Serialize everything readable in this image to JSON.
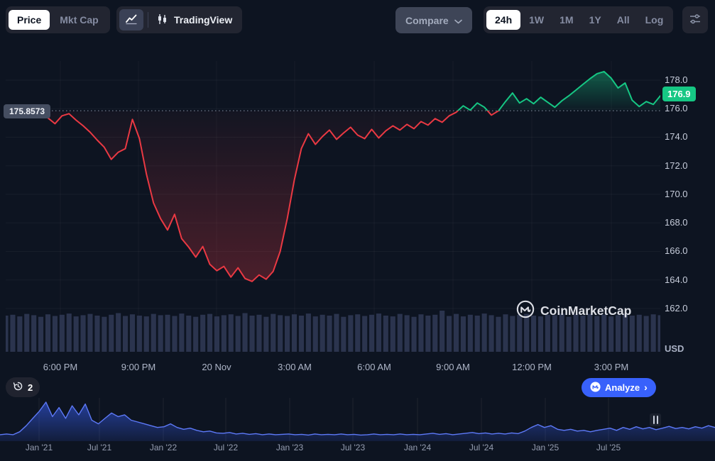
{
  "toolbar": {
    "price_label": "Price",
    "mktcap_label": "Mkt Cap",
    "tradingview_label": "TradingView",
    "compare_label": "Compare",
    "ranges": [
      "24h",
      "1W",
      "1M",
      "1Y",
      "All",
      "Log"
    ],
    "active_range": "24h"
  },
  "chart": {
    "open_price_label": "175.8573",
    "current_price_label": "176.9",
    "y_ticks": [
      "178.0",
      "176.0",
      "174.0",
      "172.0",
      "170.0",
      "168.0",
      "166.0",
      "164.0",
      "162.0"
    ],
    "y_unit": "USD",
    "x_ticks": [
      "6:00 PM",
      "9:00 PM",
      "20 Nov",
      "3:00 AM",
      "6:00 AM",
      "9:00 AM",
      "12:00 PM",
      "3:00 PM"
    ]
  },
  "watermark_label": "CoinMarketCap",
  "bottom": {
    "history_count": "2",
    "analyze_label": "Analyze",
    "x_ticks": [
      "Jan '21",
      "Jul '21",
      "Jan '22",
      "Jul '22",
      "Jan '23",
      "Jul '23",
      "Jan '24",
      "Jul '24",
      "Jan '25",
      "Jul '25"
    ]
  },
  "colors": {
    "green": "#16c784",
    "red": "#ea3943",
    "blue": "#3861fb",
    "panel": "#222531",
    "background": "#0d1421"
  },
  "chart_data": [
    {
      "type": "line",
      "title": "24h price",
      "baseline_open": 175.8573,
      "last_price": 176.9,
      "ylim": [
        161.5,
        179.5
      ],
      "y_ticks": [
        178,
        176,
        174,
        172,
        170,
        168,
        166,
        164,
        162
      ],
      "x_tick_labels": [
        "6:00 PM",
        "9:00 PM",
        "20 Nov",
        "3:00 AM",
        "6:00 AM",
        "9:00 AM",
        "12:00 PM",
        "3:00 PM"
      ],
      "values": [
        175.7,
        175.5,
        175.85,
        175.45,
        175.7,
        175.9,
        175.35,
        174.95,
        175.5,
        175.65,
        175.2,
        174.8,
        174.35,
        173.8,
        173.3,
        172.45,
        172.95,
        173.2,
        175.25,
        173.9,
        171.4,
        169.4,
        168.3,
        167.5,
        168.6,
        166.9,
        166.3,
        165.6,
        166.35,
        165.1,
        164.65,
        164.95,
        164.2,
        164.85,
        164.1,
        163.9,
        164.35,
        164.05,
        164.6,
        166.0,
        168.3,
        171.0,
        173.2,
        174.25,
        173.5,
        174.05,
        174.5,
        173.85,
        174.3,
        174.7,
        174.15,
        173.9,
        174.55,
        173.95,
        174.45,
        174.8,
        174.5,
        174.9,
        174.6,
        175.1,
        174.85,
        175.3,
        175.05,
        175.5,
        175.75,
        176.2,
        175.9,
        176.4,
        176.1,
        175.55,
        175.85,
        176.5,
        177.1,
        176.4,
        176.7,
        176.35,
        176.8,
        176.45,
        176.1,
        176.55,
        176.9,
        177.3,
        177.7,
        178.1,
        178.45,
        178.6,
        178.15,
        177.45,
        177.8,
        176.6,
        176.15,
        176.5,
        176.3,
        176.9
      ],
      "volumes_rel": [
        0.88,
        0.9,
        0.86,
        0.92,
        0.89,
        0.85,
        0.91,
        0.87,
        0.9,
        0.93,
        0.86,
        0.89,
        0.92,
        0.88,
        0.85,
        0.9,
        0.94,
        0.87,
        0.91,
        0.88,
        0.86,
        0.92,
        0.89,
        0.9,
        0.87,
        0.93,
        0.88,
        0.85,
        0.9,
        0.92,
        0.86,
        0.89,
        0.91,
        0.87,
        0.94,
        0.88,
        0.9,
        0.85,
        0.92,
        0.89,
        0.87,
        0.91,
        0.88,
        0.93,
        0.86,
        0.9,
        0.88,
        0.92,
        0.85,
        0.89,
        0.91,
        0.87,
        0.9,
        0.93,
        0.88,
        0.86,
        0.92,
        0.89,
        0.85,
        0.91,
        0.88,
        0.9,
        1.0,
        0.87,
        0.92,
        0.86,
        0.9,
        0.88,
        0.93,
        0.89,
        0.85,
        0.91,
        0.87,
        0.9,
        0.92,
        0.88,
        0.86,
        0.9,
        0.89,
        0.93,
        0.85,
        0.91,
        0.88,
        0.92,
        0.87,
        0.9,
        0.86,
        0.89,
        0.92,
        0.88,
        0.9,
        0.87,
        0.91,
        0.89
      ]
    },
    {
      "type": "area",
      "title": "all-time history brush",
      "x_tick_labels": [
        "Jan '21",
        "Jul '21",
        "Jan '22",
        "Jul '22",
        "Jan '23",
        "Jul '23",
        "Jan '24",
        "Jul '24",
        "Jan '25",
        "Jul '25"
      ],
      "values_rel": [
        0.1,
        0.12,
        0.1,
        0.18,
        0.35,
        0.55,
        0.75,
        1.0,
        0.6,
        0.85,
        0.55,
        0.9,
        0.65,
        0.95,
        0.5,
        0.4,
        0.55,
        0.7,
        0.6,
        0.65,
        0.5,
        0.45,
        0.4,
        0.35,
        0.3,
        0.32,
        0.4,
        0.3,
        0.25,
        0.28,
        0.22,
        0.18,
        0.2,
        0.15,
        0.14,
        0.16,
        0.12,
        0.14,
        0.11,
        0.13,
        0.1,
        0.12,
        0.1,
        0.11,
        0.12,
        0.1,
        0.11,
        0.09,
        0.12,
        0.1,
        0.11,
        0.1,
        0.12,
        0.1,
        0.11,
        0.09,
        0.1,
        0.12,
        0.1,
        0.11,
        0.1,
        0.12,
        0.1,
        0.11,
        0.1,
        0.12,
        0.14,
        0.11,
        0.13,
        0.1,
        0.12,
        0.14,
        0.16,
        0.13,
        0.15,
        0.12,
        0.14,
        0.12,
        0.15,
        0.13,
        0.2,
        0.3,
        0.38,
        0.3,
        0.35,
        0.25,
        0.22,
        0.25,
        0.2,
        0.22,
        0.18,
        0.22,
        0.25,
        0.28,
        0.22,
        0.3,
        0.25,
        0.32,
        0.26,
        0.3,
        0.24,
        0.28,
        0.33,
        0.27,
        0.3,
        0.26,
        0.32,
        0.28,
        0.35,
        0.3
      ]
    }
  ]
}
